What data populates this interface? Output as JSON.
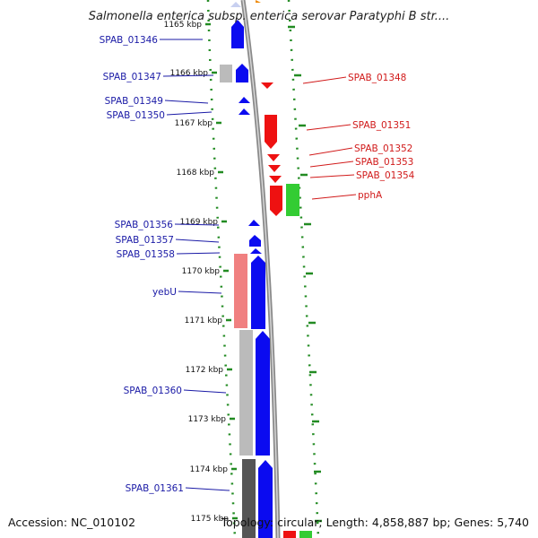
{
  "title": "Salmonella enterica subsp. enterica serovar Paratyphi B str....",
  "footer": {
    "accession": "Accession: NC_010102",
    "topology": "Topology: circular; Length: 4,858,887 bp; Genes: 5,740"
  },
  "colors": {
    "forward_gene": "#0b0bf0",
    "reverse_gene": "#ee1111",
    "rna_gene": "#33cc33",
    "gray_gene": "#bbbbbb",
    "dark_gene": "#555555",
    "pink_gene": "#f08080",
    "tick_green": "#228b22",
    "left_label": "#1a1aa6",
    "right_label": "#d11a1a"
  },
  "ticks": [
    {
      "label": "1165 kbp"
    },
    {
      "label": "1166 kbp"
    },
    {
      "label": "1167 kbp"
    },
    {
      "label": "1168 kbp"
    },
    {
      "label": "1169 kbp"
    },
    {
      "label": "1170 kbp"
    },
    {
      "label": "1171 kbp"
    },
    {
      "label": "1172 kbp"
    },
    {
      "label": "1173 kbp"
    },
    {
      "label": "1174 kbp"
    },
    {
      "label": "1175 kbp"
    }
  ],
  "left_labels": [
    {
      "text": "SPAB_01346"
    },
    {
      "text": "SPAB_01347"
    },
    {
      "text": "SPAB_01349"
    },
    {
      "text": "SPAB_01350"
    },
    {
      "text": "SPAB_01356"
    },
    {
      "text": "SPAB_01357"
    },
    {
      "text": "SPAB_01358"
    },
    {
      "text": "yebU"
    },
    {
      "text": "SPAB_01360"
    },
    {
      "text": "SPAB_01361"
    }
  ],
  "right_labels": [
    {
      "text": "SPAB_01348"
    },
    {
      "text": "SPAB_01351"
    },
    {
      "text": "SPAB_01352"
    },
    {
      "text": "SPAB_01353"
    },
    {
      "text": "SPAB_01354"
    },
    {
      "text": "pphA"
    }
  ]
}
